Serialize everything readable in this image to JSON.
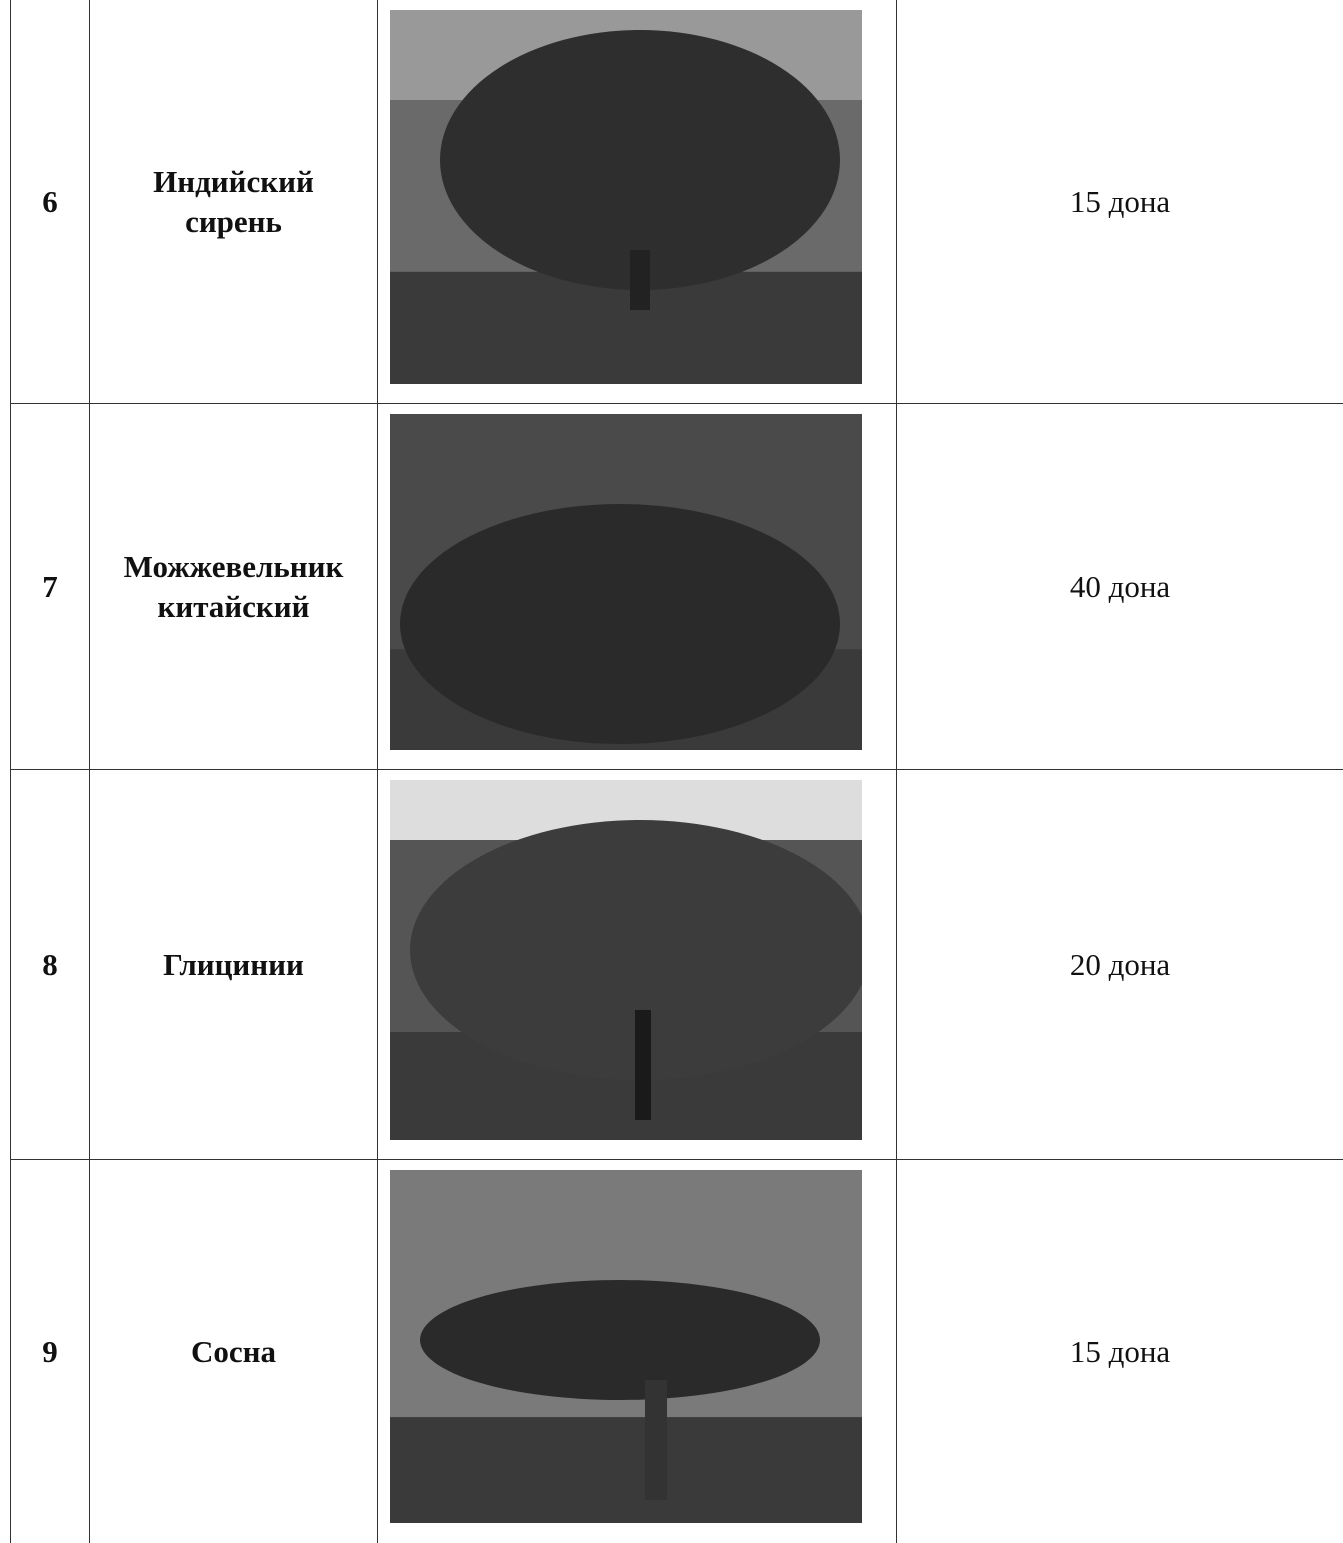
{
  "table": {
    "rows": [
      {
        "number": "6",
        "name_lines": [
          "Индийский",
          "сирень"
        ],
        "quantity": "15 дона"
      },
      {
        "number": "7",
        "name_lines": [
          "Можжевельник",
          "китайский"
        ],
        "quantity": "40 дона"
      },
      {
        "number": "8",
        "name_lines": [
          "Глицинии"
        ],
        "quantity": "20 дона"
      },
      {
        "number": "9",
        "name_lines": [
          "Сосна"
        ],
        "quantity": "15 дона"
      }
    ]
  }
}
